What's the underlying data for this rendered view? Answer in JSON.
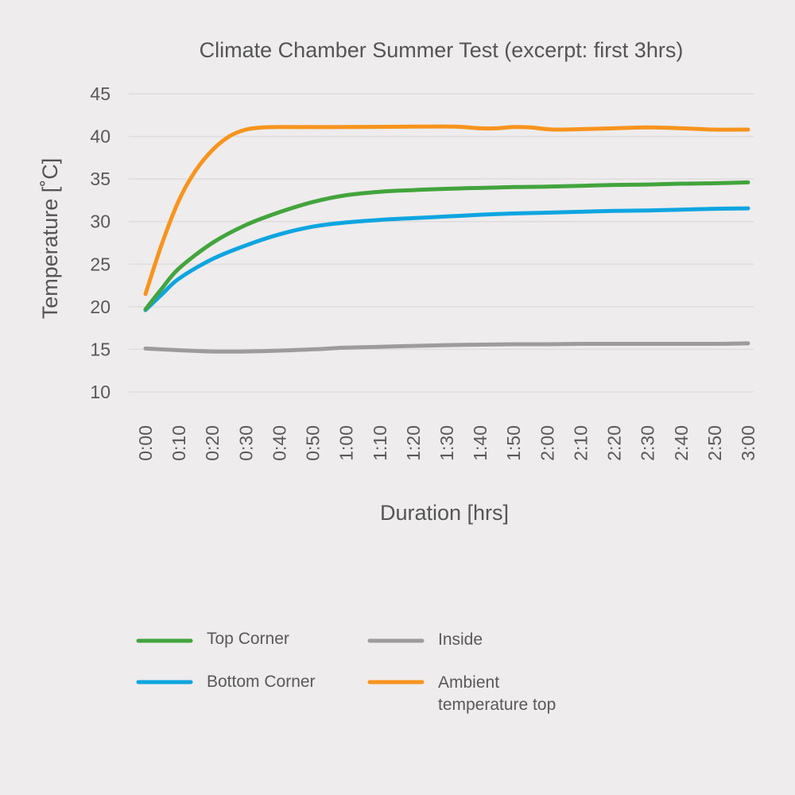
{
  "chart_data": {
    "type": "line",
    "title": "Climate Chamber Summer Test (excerpt: first 3hrs)",
    "xlabel": "Duration [hrs]",
    "ylabel": "Temperature [˚C]",
    "ylim": [
      10,
      45
    ],
    "yticks": [
      10,
      15,
      20,
      25,
      30,
      35,
      40,
      45
    ],
    "xlim": [
      0,
      180
    ],
    "xtick_values": [
      0,
      10,
      20,
      30,
      40,
      50,
      60,
      70,
      80,
      90,
      100,
      110,
      120,
      130,
      140,
      150,
      160,
      170,
      180
    ],
    "categories": [
      "0:00",
      "0:10",
      "0:20",
      "0:30",
      "0:40",
      "0:50",
      "1:00",
      "1:10",
      "1:20",
      "1:30",
      "1:40",
      "1:50",
      "2:00",
      "2:10",
      "2:20",
      "2:30",
      "2:40",
      "2:50",
      "3:00"
    ],
    "grid": true,
    "legend_position": "bottom",
    "series": [
      {
        "name": "Top Corner",
        "color": "#43a43d",
        "points": [
          [
            0,
            19.7
          ],
          [
            5,
            22.2
          ],
          [
            10,
            24.5
          ],
          [
            20,
            27.5
          ],
          [
            30,
            29.6
          ],
          [
            40,
            31.1
          ],
          [
            50,
            32.3
          ],
          [
            60,
            33.1
          ],
          [
            70,
            33.5
          ],
          [
            80,
            33.7
          ],
          [
            90,
            33.85
          ],
          [
            100,
            33.95
          ],
          [
            110,
            34.05
          ],
          [
            120,
            34.1
          ],
          [
            130,
            34.2
          ],
          [
            140,
            34.3
          ],
          [
            150,
            34.35
          ],
          [
            160,
            34.45
          ],
          [
            170,
            34.5
          ],
          [
            180,
            34.6
          ]
        ]
      },
      {
        "name": "Inside",
        "color": "#9d9b9c",
        "points": [
          [
            0,
            15.1
          ],
          [
            10,
            14.9
          ],
          [
            20,
            14.75
          ],
          [
            30,
            14.75
          ],
          [
            40,
            14.85
          ],
          [
            50,
            15.0
          ],
          [
            60,
            15.2
          ],
          [
            70,
            15.3
          ],
          [
            80,
            15.4
          ],
          [
            90,
            15.5
          ],
          [
            100,
            15.55
          ],
          [
            110,
            15.6
          ],
          [
            120,
            15.6
          ],
          [
            130,
            15.65
          ],
          [
            140,
            15.65
          ],
          [
            150,
            15.65
          ],
          [
            160,
            15.65
          ],
          [
            170,
            15.65
          ],
          [
            180,
            15.7
          ]
        ]
      },
      {
        "name": "Bottom Corner",
        "color": "#0ea5e0",
        "points": [
          [
            0,
            19.6
          ],
          [
            5,
            21.5
          ],
          [
            10,
            23.3
          ],
          [
            20,
            25.6
          ],
          [
            30,
            27.2
          ],
          [
            40,
            28.5
          ],
          [
            50,
            29.4
          ],
          [
            60,
            29.9
          ],
          [
            70,
            30.2
          ],
          [
            80,
            30.4
          ],
          [
            90,
            30.6
          ],
          [
            100,
            30.8
          ],
          [
            110,
            30.95
          ],
          [
            120,
            31.05
          ],
          [
            130,
            31.15
          ],
          [
            140,
            31.25
          ],
          [
            150,
            31.3
          ],
          [
            160,
            31.4
          ],
          [
            170,
            31.5
          ],
          [
            180,
            31.55
          ]
        ]
      },
      {
        "name": "Ambient temperature top",
        "color": "#f7941d",
        "points": [
          [
            0,
            21.5
          ],
          [
            5,
            27.5
          ],
          [
            10,
            32.5
          ],
          [
            15,
            36.0
          ],
          [
            20,
            38.4
          ],
          [
            25,
            40.0
          ],
          [
            30,
            40.8
          ],
          [
            35,
            41.05
          ],
          [
            40,
            41.1
          ],
          [
            60,
            41.1
          ],
          [
            80,
            41.15
          ],
          [
            92,
            41.15
          ],
          [
            100,
            40.95
          ],
          [
            105,
            40.95
          ],
          [
            110,
            41.1
          ],
          [
            115,
            41.05
          ],
          [
            120,
            40.85
          ],
          [
            125,
            40.8
          ],
          [
            140,
            40.95
          ],
          [
            150,
            41.05
          ],
          [
            160,
            40.95
          ],
          [
            170,
            40.8
          ],
          [
            180,
            40.8
          ]
        ]
      }
    ]
  },
  "legend": [
    {
      "label": "Top Corner",
      "color": "#43a43d"
    },
    {
      "label": "Inside",
      "color": "#9d9b9c"
    },
    {
      "label": "Bottom Corner",
      "color": "#0ea5e0"
    },
    {
      "label": "Ambient temperature top",
      "color": "#f7941d"
    }
  ]
}
